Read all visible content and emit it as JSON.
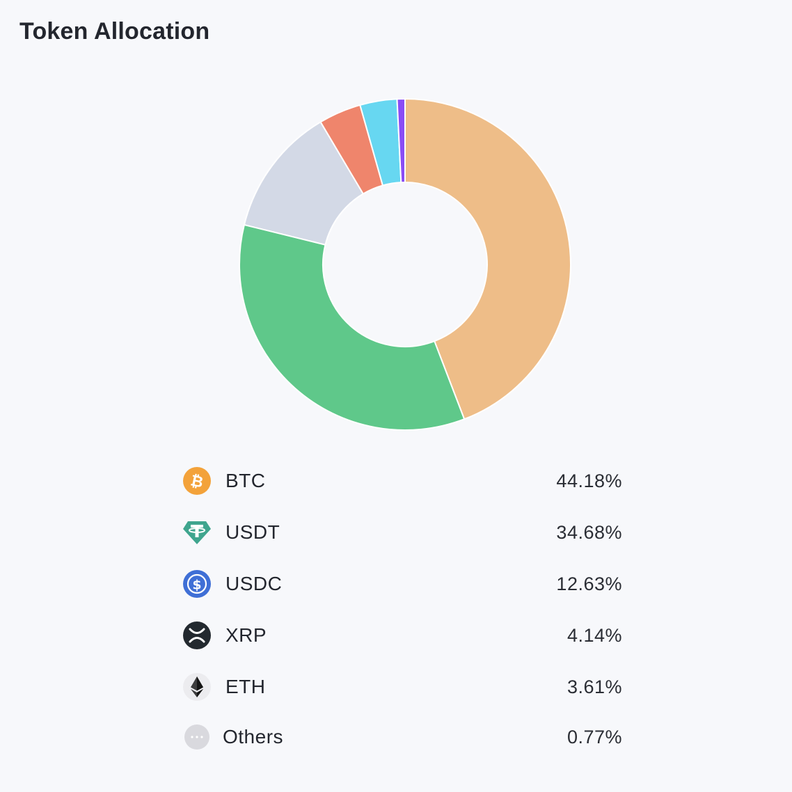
{
  "chart_data": {
    "type": "pie",
    "title": "Token Allocation",
    "categories": [
      "BTC",
      "USDT",
      "USDC",
      "XRP",
      "ETH",
      "Others"
    ],
    "values": [
      44.18,
      34.68,
      12.63,
      4.14,
      3.61,
      0.77
    ],
    "value_labels": [
      "44.18%",
      "34.68%",
      "12.63%",
      "4.14%",
      "3.61%",
      "0.77%"
    ],
    "colors": [
      "#eebd88",
      "#5fc88a",
      "#d3d9e6",
      "#ef856c",
      "#67d7f1",
      "#8a4cf5"
    ],
    "donut": true,
    "legend_position": "bottom"
  },
  "legend": [
    {
      "name": "BTC",
      "value": "44.18%",
      "icon": "btc-icon",
      "icon_color": "#f3a23a"
    },
    {
      "name": "USDT",
      "value": "34.68%",
      "icon": "usdt-icon",
      "icon_color": "#3fa58e"
    },
    {
      "name": "USDC",
      "value": "12.63%",
      "icon": "usdc-icon",
      "icon_color": "#3f6fd6"
    },
    {
      "name": "XRP",
      "value": "4.14%",
      "icon": "xrp-icon",
      "icon_color": "#23292f"
    },
    {
      "name": "ETH",
      "value": "3.61%",
      "icon": "eth-icon",
      "icon_color": "#3c3c3d"
    },
    {
      "name": "Others",
      "value": "0.77%",
      "icon": "others-icon",
      "icon_color": "#d9d9de"
    }
  ]
}
